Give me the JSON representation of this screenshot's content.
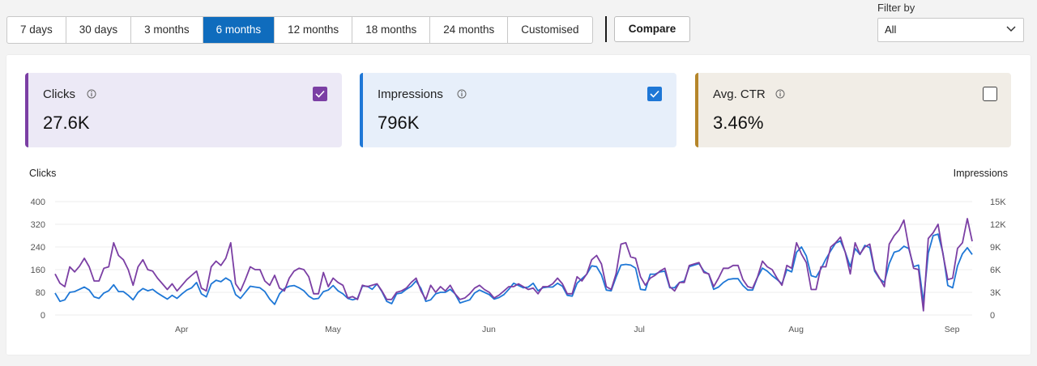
{
  "range_tabs": [
    "7 days",
    "30 days",
    "3 months",
    "6 months",
    "12 months",
    "18 months",
    "24 months",
    "Customised"
  ],
  "range_active": "6 months",
  "compare_label": "Compare",
  "filter": {
    "label": "Filter by",
    "value": "All"
  },
  "cards": {
    "clicks": {
      "label": "Clicks",
      "value": "27.6K",
      "checked": true,
      "color": "#7b3fa4"
    },
    "impressions": {
      "label": "Impressions",
      "value": "796K",
      "checked": true,
      "color": "#1e77d6"
    },
    "ctr": {
      "label": "Avg. CTR",
      "value": "3.46%",
      "checked": false,
      "color": "#b5862a"
    }
  },
  "chart_data": {
    "type": "line",
    "title": "",
    "ylabel_left": "Clicks",
    "ylabel_right": "Impressions",
    "yticks_left": [
      "0",
      "80",
      "160",
      "240",
      "320",
      "400"
    ],
    "yticks_right": [
      "0",
      "3K",
      "6K",
      "9K",
      "12K",
      "15K"
    ],
    "ylim_left": [
      0,
      400
    ],
    "ylim_right": [
      0,
      15000
    ],
    "x_labels": [
      "Apr",
      "May",
      "Jun",
      "Jul",
      "Aug",
      "Sep"
    ],
    "grid": true,
    "series": [
      {
        "name": "Clicks",
        "axis": "left",
        "color": "#7b3fa4",
        "values": [
          145,
          112,
          100,
          170,
          152,
          172,
          200,
          170,
          120,
          120,
          165,
          170,
          255,
          210,
          195,
          160,
          105,
          170,
          195,
          160,
          155,
          130,
          110,
          90,
          110,
          85,
          105,
          125,
          140,
          155,
          95,
          85,
          170,
          190,
          175,
          200,
          255,
          110,
          85,
          125,
          170,
          160,
          160,
          120,
          105,
          140,
          95,
          85,
          130,
          155,
          165,
          160,
          135,
          75,
          75,
          150,
          100,
          130,
          115,
          105,
          60,
          65,
          55,
          105,
          100,
          105,
          110,
          85,
          55,
          55,
          80,
          85,
          95,
          115,
          130,
          85,
          55,
          105,
          80,
          100,
          85,
          105,
          75,
          55,
          60,
          75,
          95,
          105,
          90,
          80,
          60,
          70,
          85,
          100,
          100,
          110,
          100,
          90,
          95,
          75,
          100,
          100,
          110,
          130,
          110,
          75,
          75,
          135,
          120,
          145,
          195,
          210,
          180,
          100,
          90,
          145,
          250,
          255,
          205,
          200,
          135,
          105,
          130,
          140,
          155,
          165,
          100,
          85,
          115,
          115,
          175,
          180,
          185,
          150,
          145,
          100,
          130,
          165,
          165,
          175,
          175,
          125,
          100,
          95,
          135,
          190,
          170,
          160,
          130,
          105,
          175,
          165,
          255,
          215,
          185,
          90,
          90,
          170,
          170,
          240,
          255,
          275,
          220,
          145,
          255,
          215,
          240,
          250,
          160,
          130,
          100,
          250,
          280,
          300,
          335,
          240,
          165,
          160,
          15,
          270,
          290,
          320,
          215,
          125,
          130,
          235,
          255,
          340,
          260
        ]
      },
      {
        "name": "Impressions",
        "axis": "right",
        "color": "#1e77d6",
        "values": [
          2900,
          1800,
          2000,
          3000,
          3100,
          3400,
          3700,
          3300,
          2400,
          2200,
          2900,
          3200,
          4000,
          3100,
          3100,
          2600,
          2000,
          3000,
          3500,
          3200,
          3400,
          2900,
          2500,
          2100,
          2600,
          2200,
          2800,
          3300,
          3600,
          4300,
          2800,
          2400,
          4100,
          4600,
          4400,
          4900,
          4500,
          2700,
          2200,
          3000,
          3800,
          3700,
          3600,
          3100,
          2100,
          1400,
          2800,
          3500,
          3800,
          3900,
          3600,
          3200,
          2500,
          2100,
          2200,
          3100,
          3300,
          3900,
          3200,
          2800,
          2200,
          2000,
          2200,
          3800,
          3800,
          3400,
          4100,
          3100,
          1800,
          1500,
          2800,
          2900,
          3400,
          3800,
          4500,
          3500,
          1800,
          2000,
          2800,
          3000,
          3000,
          3400,
          2800,
          1600,
          1800,
          2000,
          2900,
          3300,
          3000,
          2700,
          2100,
          2300,
          2700,
          3400,
          4200,
          3900,
          3600,
          3700,
          4200,
          3200,
          3600,
          3700,
          3700,
          4200,
          3800,
          2600,
          2500,
          4200,
          4800,
          5400,
          6500,
          6400,
          5300,
          3300,
          3200,
          5000,
          6600,
          6700,
          6600,
          6200,
          3400,
          3300,
          5400,
          5400,
          5700,
          5800,
          3600,
          3600,
          4300,
          4500,
          6400,
          6600,
          6800,
          5800,
          5400,
          3400,
          3700,
          4300,
          4700,
          4800,
          4800,
          3900,
          3300,
          3300,
          5000,
          6200,
          5800,
          5200,
          4700,
          4100,
          6000,
          5700,
          8300,
          9000,
          7800,
          5200,
          5000,
          6100,
          7400,
          8500,
          9500,
          9800,
          8300,
          6400,
          8800,
          8000,
          9200,
          8900,
          5800,
          4800,
          4300,
          6800,
          8300,
          8500,
          9100,
          8800,
          6400,
          6600,
          1700,
          8200,
          10500,
          10700,
          8200,
          3900,
          3600,
          6500,
          8100,
          8900,
          8000
        ]
      }
    ]
  }
}
